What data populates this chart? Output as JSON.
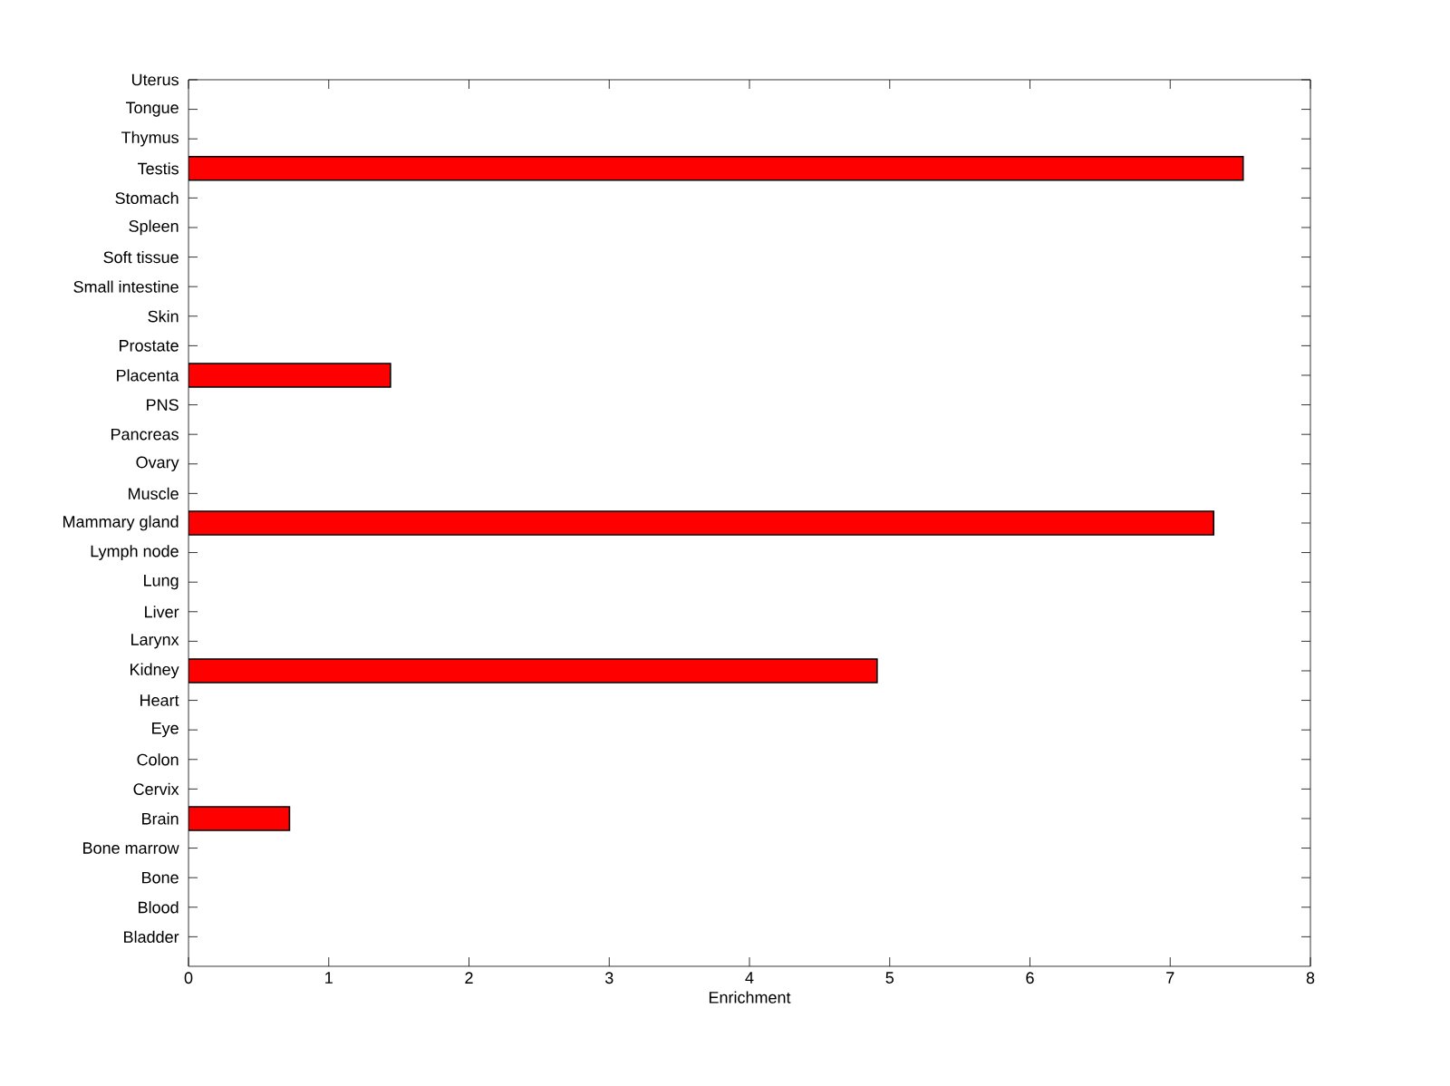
{
  "chart_data": {
    "type": "bar",
    "orientation": "horizontal",
    "xlabel": "Enrichment",
    "categories": [
      "Uterus",
      "Tongue",
      "Thymus",
      "Testis",
      "Stomach",
      "Spleen",
      "Soft tissue",
      "Small intestine",
      "Skin",
      "Prostate",
      "Placenta",
      "PNS",
      "Pancreas",
      "Ovary",
      "Muscle",
      "Mammary gland",
      "Lymph node",
      "Lung",
      "Liver",
      "Larynx",
      "Kidney",
      "Heart",
      "Eye",
      "Colon",
      "Cervix",
      "Brain",
      "Bone marrow",
      "Bone",
      "Blood",
      "Bladder"
    ],
    "values": [
      0,
      0,
      0,
      7.52,
      0,
      0,
      0,
      0,
      0,
      0,
      1.44,
      0,
      0,
      0,
      0,
      7.31,
      0,
      0,
      0,
      0,
      4.91,
      0,
      0,
      0,
      0,
      0.72,
      0,
      0,
      0,
      0
    ],
    "color": "#ff0000",
    "xlim": [
      0,
      8
    ],
    "xticks": [
      0,
      1,
      2,
      3,
      4,
      5,
      6,
      7,
      8
    ]
  }
}
